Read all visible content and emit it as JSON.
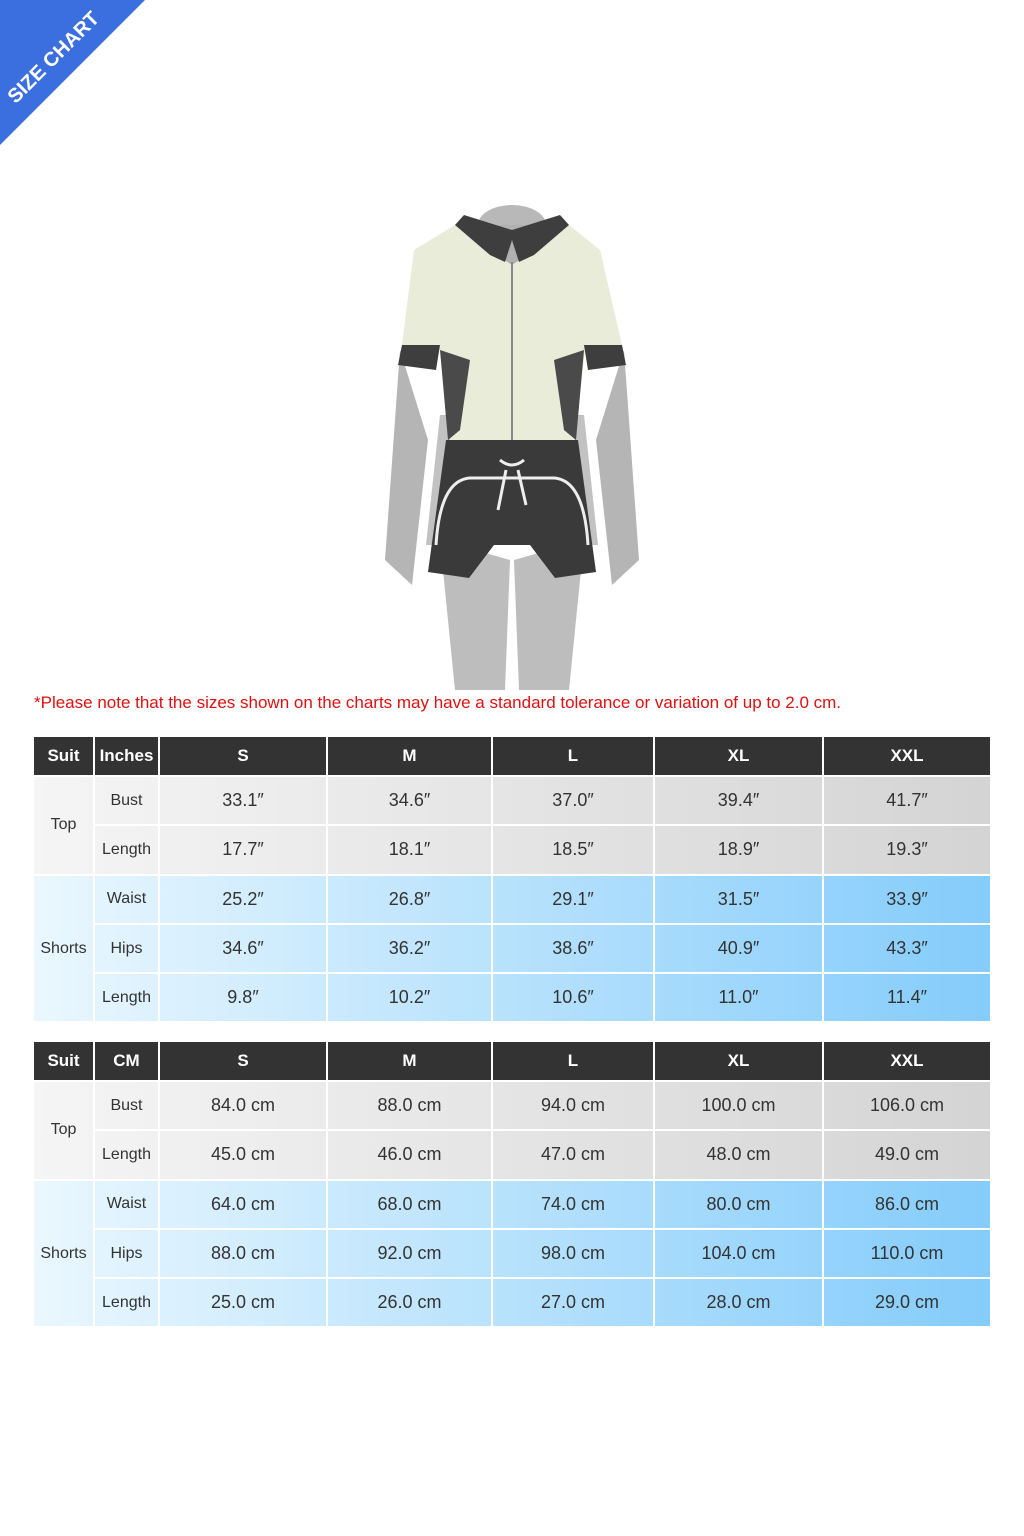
{
  "badge": "SIZE CHART",
  "note": "*Please note that the sizes shown on the charts may have a standard tolerance or variation of up to 2.0 cm.",
  "tables": [
    {
      "header": [
        "Suit",
        "Inches",
        "S",
        "M",
        "L",
        "XL",
        "XXL"
      ],
      "groups": [
        {
          "name": "Top",
          "rows": [
            {
              "label": "Bust",
              "cells": [
                "33.1″",
                "34.6″",
                "37.0″",
                "39.4″",
                "41.7″"
              ]
            },
            {
              "label": "Length",
              "cells": [
                "17.7″",
                "18.1″",
                "18.5″",
                "18.9″",
                "19.3″"
              ]
            }
          ]
        },
        {
          "name": "Shorts",
          "rows": [
            {
              "label": "Waist",
              "cells": [
                "25.2″",
                "26.8″",
                "29.1″",
                "31.5″",
                "33.9″"
              ]
            },
            {
              "label": "Hips",
              "cells": [
                "34.6″",
                "36.2″",
                "38.6″",
                "40.9″",
                "43.3″"
              ]
            },
            {
              "label": "Length",
              "cells": [
                "9.8″",
                "10.2″",
                "10.6″",
                "11.0″",
                "11.4″"
              ]
            }
          ]
        }
      ]
    },
    {
      "header": [
        "Suit",
        "CM",
        "S",
        "M",
        "L",
        "XL",
        "XXL"
      ],
      "groups": [
        {
          "name": "Top",
          "rows": [
            {
              "label": "Bust",
              "cells": [
                "84.0 cm",
                "88.0 cm",
                "94.0 cm",
                "100.0 cm",
                "106.0 cm"
              ]
            },
            {
              "label": "Length",
              "cells": [
                "45.0 cm",
                "46.0 cm",
                "47.0 cm",
                "48.0 cm",
                "49.0 cm"
              ]
            }
          ]
        },
        {
          "name": "Shorts",
          "rows": [
            {
              "label": "Waist",
              "cells": [
                "64.0 cm",
                "68.0 cm",
                "74.0 cm",
                "80.0 cm",
                "86.0 cm"
              ]
            },
            {
              "label": "Hips",
              "cells": [
                "88.0 cm",
                "92.0 cm",
                "98.0 cm",
                "104.0 cm",
                "110.0 cm"
              ]
            },
            {
              "label": "Length",
              "cells": [
                "25.0 cm",
                "26.0 cm",
                "27.0 cm",
                "28.0 cm",
                "29.0 cm"
              ]
            }
          ]
        }
      ]
    }
  ]
}
